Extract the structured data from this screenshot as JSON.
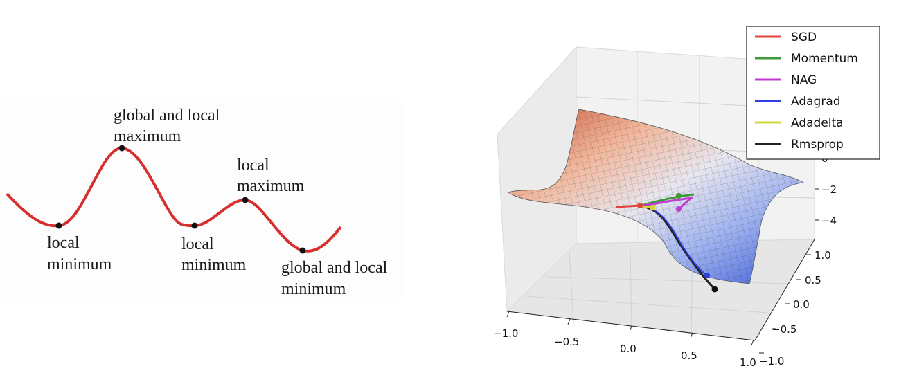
{
  "left": {
    "curve_color": "#d62f2f",
    "labels": {
      "global_max": [
        "global and local",
        "maximum"
      ],
      "local_min_1": [
        "local",
        "minimum"
      ],
      "local_max": [
        "local",
        "maximum"
      ],
      "local_min_2": [
        "local",
        "minimum"
      ],
      "global_min": [
        "global and local",
        "minimum"
      ]
    }
  },
  "right": {
    "legend": [
      {
        "label": "SGD",
        "color": "#e0433a"
      },
      {
        "label": "Momentum",
        "color": "#3f9a3a"
      },
      {
        "label": "NAG",
        "color": "#c23bd0"
      },
      {
        "label": "Adagrad",
        "color": "#2f3ee0"
      },
      {
        "label": "Adadelta",
        "color": "#d4d43a"
      },
      {
        "label": "Rmsprop",
        "color": "#222222"
      }
    ],
    "x_ticks": [
      "−1.0",
      "−0.5",
      "0.0",
      "0.5",
      "1.0"
    ],
    "y_ticks": [
      "1.0",
      "0.5",
      "0.0",
      "−0.5",
      "−1.0"
    ],
    "z_ticks": [
      "0",
      "−2",
      "−4"
    ]
  }
}
